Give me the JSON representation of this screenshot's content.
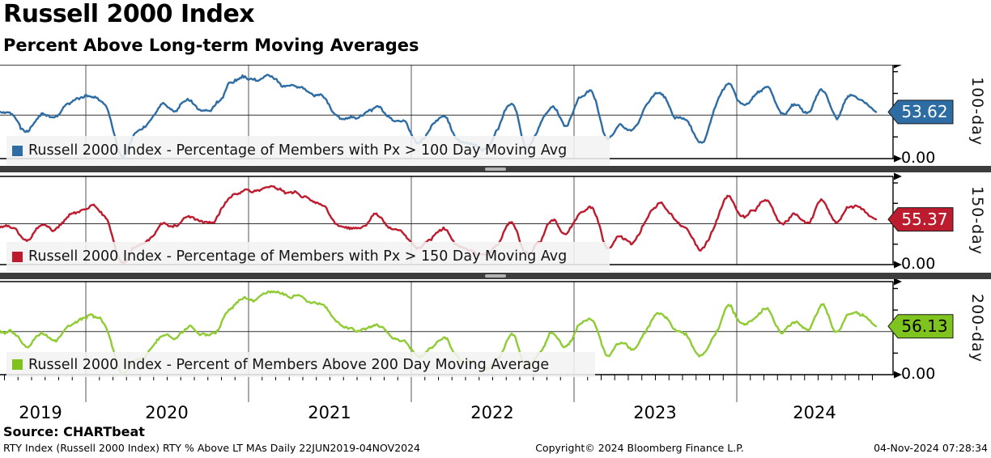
{
  "header": {
    "title": "Russell 2000 Index",
    "subtitle": "Percent Above Long-term Moving Averages"
  },
  "footer": {
    "source": "Source: CHARTbeat",
    "status_left": "RTY Index (Russell 2000 Index) RTY % Above LT MAs  Daily 22JUN2019-04NOV2024",
    "status_center": "Copyright© 2024 Bloomberg Finance L.P.",
    "status_right": "04-Nov-2024 07:28:34"
  },
  "colors": {
    "blue": "#2E6DA4",
    "red": "#BD1B2E",
    "green": "#8FCC33",
    "green_badge": "#7FC41E",
    "separator": "#3D3D3D",
    "legend_bg": "rgba(242,242,242,0.88)",
    "grid": "#444444"
  },
  "chart_data": {
    "type": "line",
    "title": "Russell 2000 Index — Percent Above Long-term Moving Averages",
    "x_range_label": "22JUN2019-04NOV2024",
    "x_tick_labels": [
      "2019",
      "2020",
      "2021",
      "2022",
      "2023",
      "2024"
    ],
    "ylim": [
      0,
      108
    ],
    "y_axis_ticks": [
      0,
      25,
      50,
      75,
      100
    ],
    "y_mid_gridline": 50,
    "y_zero_label": "0.00",
    "grid": "on",
    "legend_position": "bottom-left inside each panel",
    "anchors_start": "2019-06",
    "anchors_interval": "monthly",
    "panels": [
      {
        "axis_label": "100-day",
        "legend": "Russell 2000 Index - Percentage of Members with Px > 100 Day Moving Avg",
        "last_value": 53.62,
        "last_label": "53.62",
        "line_color": "#2E6DA4",
        "badge_color": "#2E6DA4",
        "badge_text_color": "#FFFFFF",
        "monthly_values": [
          55,
          48,
          30,
          50,
          45,
          62,
          70,
          72,
          55,
          3,
          28,
          38,
          62,
          55,
          68,
          55,
          62,
          85,
          92,
          88,
          97,
          85,
          85,
          75,
          70,
          52,
          50,
          52,
          62,
          48,
          42,
          18,
          40,
          50,
          22,
          18,
          10,
          35,
          62,
          14,
          35,
          58,
          38,
          70,
          72,
          25,
          38,
          32,
          62,
          78,
          52,
          42,
          18,
          55,
          85,
          62,
          72,
          80,
          48,
          62,
          52,
          82,
          48,
          72,
          68,
          53.62
        ]
      },
      {
        "axis_label": "150-day",
        "legend": "Russell 2000 Index - Percentage of Members with Px > 150 Day Moving Avg",
        "last_value": 55.37,
        "last_label": "55.37",
        "line_color": "#BD1B2E",
        "badge_color": "#BD1B2E",
        "badge_text_color": "#FFFFFF",
        "monthly_values": [
          50,
          45,
          28,
          48,
          42,
          58,
          66,
          70,
          52,
          2,
          20,
          30,
          50,
          48,
          60,
          50,
          55,
          80,
          90,
          90,
          95,
          90,
          88,
          82,
          68,
          48,
          45,
          48,
          60,
          42,
          35,
          20,
          32,
          42,
          20,
          16,
          8,
          25,
          50,
          12,
          28,
          52,
          35,
          62,
          68,
          22,
          35,
          28,
          55,
          75,
          55,
          42,
          18,
          48,
          82,
          60,
          68,
          78,
          50,
          62,
          52,
          80,
          50,
          70,
          68,
          55.37
        ]
      },
      {
        "axis_label": "200-day",
        "legend": "Russell 2000 Index - Percent of Members Above 200 Day Moving Average",
        "last_value": 56.13,
        "last_label": "56.13",
        "line_color": "#8FCC33",
        "badge_color": "#7FC41E",
        "badge_text_color": "#000000",
        "monthly_values": [
          52,
          48,
          32,
          46,
          40,
          55,
          62,
          66,
          50,
          2,
          16,
          25,
          45,
          42,
          55,
          46,
          50,
          75,
          88,
          88,
          95,
          92,
          90,
          85,
          78,
          60,
          52,
          50,
          58,
          42,
          38,
          22,
          30,
          40,
          20,
          15,
          8,
          22,
          45,
          12,
          25,
          48,
          32,
          58,
          65,
          22,
          35,
          28,
          52,
          72,
          55,
          42,
          20,
          45,
          80,
          58,
          66,
          76,
          50,
          62,
          52,
          80,
          48,
          70,
          68,
          56.13
        ]
      }
    ]
  }
}
